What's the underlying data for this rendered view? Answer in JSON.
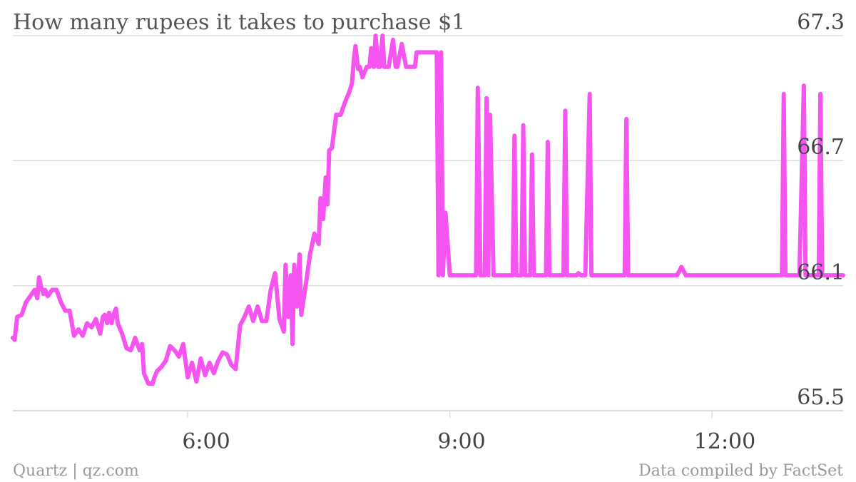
{
  "title": "How many rupees it takes to purchase $1",
  "footer": {
    "source": "Quartz | qz.com",
    "credit": "Data compiled by FactSet"
  },
  "colors": {
    "line": "#f554f0",
    "grid": "#dddddd",
    "text": "#444444",
    "footer": "#9a9a9a"
  },
  "chart_data": {
    "type": "line",
    "title": "How many rupees it takes to purchase $1",
    "xlabel": "",
    "ylabel": "",
    "xlim": [
      4.0,
      13.5
    ],
    "ylim": [
      65.5,
      67.3
    ],
    "yticks": [
      "67.3",
      "66.7",
      "66.1",
      "65.5"
    ],
    "ytick_values": [
      67.3,
      66.7,
      66.1,
      65.5
    ],
    "xticks": [
      "6:00",
      "9:00",
      "12:00"
    ],
    "xtick_values": [
      6.0,
      9.0,
      12.0
    ],
    "grid": true,
    "legend": "none",
    "series": [
      {
        "x": [
          4.0,
          4.02,
          4.05,
          4.1,
          4.15,
          4.2,
          4.25,
          4.28,
          4.3,
          4.32,
          4.35,
          4.37,
          4.4,
          4.45,
          4.5,
          4.55,
          4.6,
          4.65,
          4.7,
          4.75,
          4.8,
          4.85,
          4.9,
          4.95,
          5.0,
          5.03,
          5.05,
          5.08,
          5.1,
          5.13,
          5.15,
          5.18,
          5.2,
          5.25,
          5.3,
          5.35,
          5.4,
          5.45,
          5.48,
          5.5,
          5.55,
          5.6,
          5.62,
          5.65,
          5.7,
          5.75,
          5.8,
          5.85,
          5.9,
          5.95,
          6.0,
          6.05,
          6.1,
          6.15,
          6.2,
          6.25,
          6.3,
          6.35,
          6.4,
          6.45,
          6.5,
          6.55,
          6.6,
          6.65,
          6.7,
          6.75,
          6.8,
          6.85,
          6.9,
          6.95,
          7.0,
          7.05,
          7.1,
          7.12,
          7.15,
          7.18,
          7.2,
          7.22,
          7.25,
          7.28,
          7.3,
          7.35,
          7.4,
          7.45,
          7.5,
          7.52,
          7.55,
          7.58,
          7.6,
          7.62,
          7.65,
          7.7,
          7.75,
          7.8,
          7.85,
          7.88,
          7.9,
          7.92,
          7.95,
          7.97,
          8.0,
          8.05,
          8.08,
          8.1,
          8.13,
          8.15,
          8.18,
          8.2,
          8.23,
          8.25,
          8.3,
          8.35,
          8.38,
          8.4,
          8.45,
          8.5,
          8.55,
          8.6,
          8.62,
          8.65,
          8.7,
          8.8,
          8.85,
          8.87,
          8.9,
          8.92,
          8.95,
          9.0,
          9.2,
          9.28,
          9.3,
          9.32,
          9.35,
          9.4,
          9.42,
          9.44,
          9.46,
          9.5,
          9.7,
          9.72,
          9.74,
          9.76,
          9.8,
          9.82,
          9.84,
          9.86,
          9.9,
          9.92,
          9.94,
          9.96,
          10.0,
          10.1,
          10.12,
          10.14,
          10.16,
          10.3,
          10.32,
          10.34,
          10.36,
          10.45,
          10.47,
          10.5,
          10.52,
          10.55,
          10.6,
          10.62,
          10.64,
          10.66,
          10.8,
          11.0,
          11.02,
          11.04,
          11.06,
          11.2,
          11.4,
          11.6,
          11.65,
          11.7,
          12.0,
          12.3,
          12.35,
          12.4,
          12.6,
          12.8,
          12.82,
          12.84,
          12.86,
          13.0,
          13.05,
          13.07,
          13.09,
          13.12,
          13.2,
          13.22,
          13.24,
          13.26,
          13.35,
          13.5
        ],
        "y": [
          65.85,
          65.84,
          65.95,
          65.96,
          66.02,
          66.05,
          66.08,
          66.04,
          66.14,
          66.1,
          66.06,
          66.08,
          66.05,
          66.08,
          66.08,
          66.02,
          65.98,
          65.98,
          65.86,
          65.89,
          65.86,
          65.92,
          65.9,
          65.94,
          65.87,
          65.95,
          65.96,
          65.92,
          65.97,
          65.92,
          65.96,
          65.99,
          65.92,
          65.87,
          65.8,
          65.79,
          65.85,
          65.79,
          65.82,
          65.68,
          65.63,
          65.63,
          65.66,
          65.69,
          65.71,
          65.74,
          65.81,
          65.79,
          65.76,
          65.82,
          65.66,
          65.73,
          65.64,
          65.75,
          65.67,
          65.73,
          65.68,
          65.74,
          65.78,
          65.77,
          65.72,
          65.7,
          65.91,
          65.95,
          66.0,
          65.93,
          66.0,
          65.93,
          65.93,
          66.08,
          66.16,
          65.94,
          65.88,
          66.2,
          65.95,
          66.15,
          65.82,
          66.2,
          66.0,
          66.25,
          65.96,
          66.1,
          66.25,
          66.35,
          66.3,
          66.52,
          66.42,
          66.62,
          66.49,
          66.75,
          66.76,
          66.92,
          66.92,
          66.98,
          67.03,
          67.07,
          67.18,
          67.25,
          67.14,
          67.15,
          67.1,
          67.15,
          67.15,
          67.24,
          67.15,
          67.3,
          67.15,
          67.15,
          67.3,
          67.15,
          67.15,
          67.28,
          67.15,
          67.15,
          67.26,
          67.15,
          67.15,
          67.15,
          67.22,
          67.22,
          67.22,
          67.22,
          67.22,
          66.15,
          67.22,
          66.15,
          66.45,
          66.15,
          66.15,
          66.15,
          66.15,
          67.05,
          66.15,
          66.15,
          67.0,
          66.15,
          66.92,
          66.15,
          66.15,
          66.15,
          66.82,
          66.15,
          66.15,
          66.15,
          66.87,
          66.15,
          66.15,
          66.15,
          66.73,
          66.15,
          66.15,
          66.15,
          66.79,
          66.15,
          66.15,
          66.15,
          66.94,
          66.15,
          66.15,
          66.15,
          66.16,
          66.15,
          66.15,
          66.15,
          67.02,
          66.15,
          66.15,
          66.15,
          66.15,
          66.15,
          66.9,
          66.15,
          66.15,
          66.15,
          66.15,
          66.15,
          66.19,
          66.15,
          66.15,
          66.15,
          66.15,
          66.15,
          66.15,
          66.15,
          67.02,
          66.15,
          66.15,
          66.15,
          67.06,
          66.15,
          66.15,
          66.15,
          66.15,
          66.15,
          67.02,
          66.15,
          66.15,
          66.15
        ]
      }
    ]
  }
}
